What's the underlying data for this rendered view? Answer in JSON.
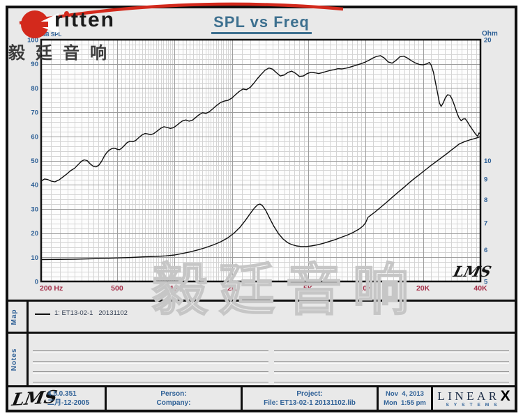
{
  "header": {
    "brand": "ritten",
    "brand_cn": "毅廷音响",
    "title": "SPL vs Freq"
  },
  "watermark": {
    "text": "毅廷音响"
  },
  "colors": {
    "accent_red": "#d3291c",
    "axis_blue": "#2e6096",
    "freq_maroon": "#a32c46",
    "title_blue": "#3d708f",
    "grid_minor": "#d4d4d4",
    "grid_major": "#9d9d9d",
    "curve": "#0e0e0e",
    "plot_bg": "#fdfdfd",
    "frame_bg": "#e9e9e9"
  },
  "chart_data": {
    "type": "line",
    "title": "SPL vs Freq",
    "grid": true,
    "lms_mark": "LMS",
    "x_axis": {
      "unit": "Hz",
      "scale": "log",
      "min": 200,
      "max": 40000,
      "ticks": [
        {
          "value": 200,
          "label": "200  Hz"
        },
        {
          "value": 500,
          "label": "500"
        },
        {
          "value": 1000,
          "label": "1K"
        },
        {
          "value": 2000,
          "label": "2K"
        },
        {
          "value": 5000,
          "label": "5K"
        },
        {
          "value": 10000,
          "label": "10K"
        },
        {
          "value": 20000,
          "label": "20K"
        },
        {
          "value": 40000,
          "label": "40K"
        }
      ],
      "minor_steps": [
        25,
        25,
        50,
        250,
        500,
        1000,
        2000
      ]
    },
    "y_left": {
      "label": "dB SPL",
      "min": 0,
      "max": 100,
      "tick_step": 10,
      "minor_step": 2
    },
    "y_right": {
      "label": "Ohm",
      "scale": "log",
      "min": 5,
      "max": 20,
      "ticks": [
        20,
        10,
        9,
        8,
        7,
        6,
        5
      ]
    },
    "series": [
      {
        "name": "1: ET13-02-1   20131102",
        "axis": "left",
        "points": [
          [
            200,
            41.5
          ],
          [
            208,
            42.4
          ],
          [
            216,
            42.2
          ],
          [
            226,
            41.5
          ],
          [
            236,
            41.2
          ],
          [
            248,
            42.0
          ],
          [
            260,
            43.2
          ],
          [
            272,
            44.4
          ],
          [
            285,
            45.8
          ],
          [
            300,
            46.9
          ],
          [
            314,
            48.5
          ],
          [
            326,
            49.8
          ],
          [
            336,
            50.3
          ],
          [
            348,
            50.0
          ],
          [
            362,
            48.6
          ],
          [
            376,
            47.6
          ],
          [
            388,
            47.4
          ],
          [
            400,
            48.0
          ],
          [
            414,
            49.6
          ],
          [
            427,
            51.6
          ],
          [
            440,
            53.2
          ],
          [
            454,
            54.3
          ],
          [
            470,
            55.0
          ],
          [
            486,
            55.1
          ],
          [
            500,
            54.7
          ],
          [
            514,
            54.5
          ],
          [
            528,
            55.1
          ],
          [
            545,
            56.2
          ],
          [
            565,
            57.5
          ],
          [
            585,
            58.0
          ],
          [
            605,
            57.8
          ],
          [
            625,
            58.3
          ],
          [
            650,
            59.5
          ],
          [
            675,
            60.6
          ],
          [
            700,
            61.2
          ],
          [
            725,
            61.0
          ],
          [
            750,
            60.7
          ],
          [
            780,
            61.2
          ],
          [
            810,
            62.2
          ],
          [
            845,
            63.3
          ],
          [
            880,
            64.0
          ],
          [
            915,
            63.7
          ],
          [
            950,
            63.3
          ],
          [
            985,
            63.6
          ],
          [
            1020,
            64.4
          ],
          [
            1060,
            65.5
          ],
          [
            1100,
            66.4
          ],
          [
            1145,
            66.8
          ],
          [
            1190,
            66.3
          ],
          [
            1240,
            66.7
          ],
          [
            1290,
            67.8
          ],
          [
            1345,
            69.0
          ],
          [
            1400,
            69.8
          ],
          [
            1460,
            69.5
          ],
          [
            1520,
            70.2
          ],
          [
            1590,
            71.5
          ],
          [
            1660,
            72.8
          ],
          [
            1740,
            74.0
          ],
          [
            1820,
            74.6
          ],
          [
            1900,
            74.9
          ],
          [
            1990,
            75.8
          ],
          [
            2080,
            77.2
          ],
          [
            2180,
            78.6
          ],
          [
            2280,
            79.6
          ],
          [
            2380,
            79.3
          ],
          [
            2490,
            80.3
          ],
          [
            2600,
            82.0
          ],
          [
            2720,
            84.0
          ],
          [
            2850,
            85.8
          ],
          [
            2980,
            87.4
          ],
          [
            3120,
            88.3
          ],
          [
            3260,
            87.8
          ],
          [
            3420,
            86.3
          ],
          [
            3580,
            85.0
          ],
          [
            3750,
            85.4
          ],
          [
            3930,
            86.5
          ],
          [
            4110,
            87.0
          ],
          [
            4300,
            86.1
          ],
          [
            4500,
            84.8
          ],
          [
            4720,
            85.0
          ],
          [
            4950,
            86.0
          ],
          [
            5180,
            86.5
          ],
          [
            5430,
            86.3
          ],
          [
            5690,
            86.0
          ],
          [
            5960,
            86.4
          ],
          [
            6240,
            86.9
          ],
          [
            6540,
            87.3
          ],
          [
            6850,
            87.6
          ],
          [
            7180,
            88.0
          ],
          [
            7520,
            87.9
          ],
          [
            7880,
            88.2
          ],
          [
            8250,
            88.6
          ],
          [
            8650,
            89.1
          ],
          [
            9060,
            89.6
          ],
          [
            9490,
            90.1
          ],
          [
            9940,
            90.7
          ],
          [
            10420,
            91.5
          ],
          [
            10920,
            92.4
          ],
          [
            11440,
            93.1
          ],
          [
            11980,
            93.4
          ],
          [
            12550,
            92.4
          ],
          [
            13150,
            90.8
          ],
          [
            13780,
            90.3
          ],
          [
            14430,
            91.4
          ],
          [
            15120,
            92.9
          ],
          [
            15840,
            93.2
          ],
          [
            16600,
            92.4
          ],
          [
            17390,
            91.3
          ],
          [
            18220,
            90.4
          ],
          [
            19080,
            89.8
          ],
          [
            19990,
            89.6
          ],
          [
            20940,
            90.0
          ],
          [
            21600,
            90.6
          ],
          [
            22100,
            89.4
          ],
          [
            22700,
            86.5
          ],
          [
            23300,
            82.0
          ],
          [
            23900,
            77.5
          ],
          [
            24400,
            73.8
          ],
          [
            24900,
            72.4
          ],
          [
            25500,
            73.8
          ],
          [
            26200,
            76.0
          ],
          [
            26900,
            77.2
          ],
          [
            27700,
            77.0
          ],
          [
            28500,
            75.2
          ],
          [
            29300,
            72.6
          ],
          [
            30100,
            69.8
          ],
          [
            30900,
            67.6
          ],
          [
            31700,
            66.5
          ],
          [
            32500,
            67.2
          ],
          [
            33300,
            67.3
          ],
          [
            34200,
            66.0
          ],
          [
            35100,
            64.5
          ],
          [
            36100,
            63.1
          ],
          [
            37000,
            61.9
          ],
          [
            37900,
            60.7
          ],
          [
            38700,
            60.1
          ],
          [
            39300,
            61.4
          ],
          [
            40000,
            61.1
          ]
        ]
      },
      {
        "name": "impedance",
        "axis": "right",
        "points": [
          [
            200,
            5.67
          ],
          [
            300,
            5.68
          ],
          [
            400,
            5.7
          ],
          [
            500,
            5.72
          ],
          [
            600,
            5.74
          ],
          [
            700,
            5.76
          ],
          [
            800,
            5.77
          ],
          [
            900,
            5.79
          ],
          [
            1000,
            5.82
          ],
          [
            1100,
            5.87
          ],
          [
            1200,
            5.92
          ],
          [
            1320,
            5.99
          ],
          [
            1450,
            6.07
          ],
          [
            1600,
            6.17
          ],
          [
            1750,
            6.28
          ],
          [
            1900,
            6.42
          ],
          [
            2050,
            6.6
          ],
          [
            2200,
            6.82
          ],
          [
            2350,
            7.1
          ],
          [
            2500,
            7.4
          ],
          [
            2620,
            7.62
          ],
          [
            2720,
            7.76
          ],
          [
            2800,
            7.79
          ],
          [
            2880,
            7.73
          ],
          [
            3000,
            7.52
          ],
          [
            3150,
            7.18
          ],
          [
            3300,
            6.88
          ],
          [
            3500,
            6.58
          ],
          [
            3700,
            6.38
          ],
          [
            3900,
            6.25
          ],
          [
            4100,
            6.18
          ],
          [
            4350,
            6.13
          ],
          [
            4600,
            6.11
          ],
          [
            4900,
            6.11
          ],
          [
            5200,
            6.13
          ],
          [
            5600,
            6.17
          ],
          [
            6000,
            6.22
          ],
          [
            6400,
            6.28
          ],
          [
            6900,
            6.35
          ],
          [
            7400,
            6.43
          ],
          [
            8000,
            6.52
          ],
          [
            8600,
            6.62
          ],
          [
            9200,
            6.74
          ],
          [
            9700,
            6.87
          ],
          [
            10000,
            7.0
          ],
          [
            10300,
            7.22
          ],
          [
            10700,
            7.32
          ],
          [
            11200,
            7.44
          ],
          [
            12000,
            7.65
          ],
          [
            13000,
            7.9
          ],
          [
            14000,
            8.15
          ],
          [
            15000,
            8.38
          ],
          [
            16000,
            8.6
          ],
          [
            17000,
            8.82
          ],
          [
            18000,
            9.02
          ],
          [
            19000,
            9.2
          ],
          [
            20000,
            9.38
          ],
          [
            21000,
            9.55
          ],
          [
            22000,
            9.72
          ],
          [
            23500,
            9.95
          ],
          [
            25000,
            10.17
          ],
          [
            26500,
            10.38
          ],
          [
            28000,
            10.6
          ],
          [
            29500,
            10.8
          ],
          [
            31000,
            11.0
          ],
          [
            33000,
            11.15
          ],
          [
            35000,
            11.25
          ],
          [
            37000,
            11.33
          ],
          [
            38500,
            11.4
          ],
          [
            40000,
            11.48
          ]
        ]
      }
    ]
  },
  "map_section": {
    "label": "Map",
    "legend": [
      {
        "name": "1: ET13-02-1   20131102"
      }
    ]
  },
  "notes_section": {
    "label": "Notes"
  },
  "footer": {
    "lms_logo": "LMS",
    "version": "4.5.0.351",
    "date_cn": "二月-12-2005",
    "person_label": "Person:",
    "company_label": "Company:",
    "project_label": "Project:",
    "file_label": "File: ET13-02-1 20131102.lib",
    "date": "Nov  4, 2013",
    "time": "Mon  1:55 pm",
    "brand": {
      "linear": "LINEAR",
      "x": "X",
      "systems": "SYSTEMS"
    }
  }
}
